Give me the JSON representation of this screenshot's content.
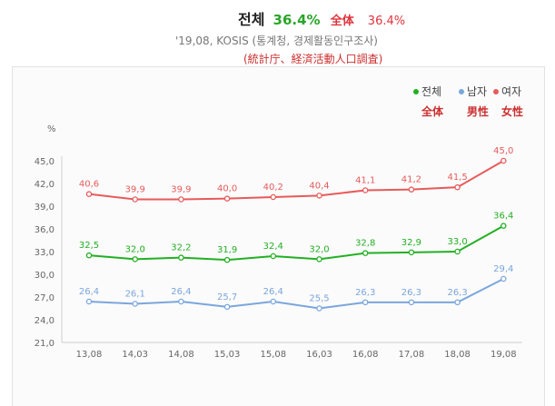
{
  "header": {
    "title": "전체",
    "value": "36.4%",
    "title_hanja": "全体",
    "value2": "36.4%",
    "source": "'19,08, KOSIS (통계청, 경제활동인구조사)",
    "source_hanja": "(統計庁、経済活動人口調査)"
  },
  "chart_data": {
    "type": "line",
    "ylabel": "%",
    "categories": [
      "13,08",
      "14,03",
      "14,08",
      "15,03",
      "15,08",
      "16,03",
      "16,08",
      "17,08",
      "18,08",
      "19,08"
    ],
    "ylim": [
      21.0,
      45.0
    ],
    "yticks": [
      "21,0",
      "24,0",
      "27,0",
      "30,0",
      "33,0",
      "36,0",
      "39,0",
      "42,0",
      "45,0"
    ],
    "series": [
      {
        "name": "전체",
        "name_hanja": "全体",
        "color": "#22b022",
        "values": [
          32.5,
          32.0,
          32.2,
          31.9,
          32.4,
          32.0,
          32.8,
          32.9,
          33.0,
          36.4
        ],
        "labels": [
          "32,5",
          "32,0",
          "32,2",
          "31,9",
          "32,4",
          "32,0",
          "32,8",
          "32,9",
          "33,0",
          "36,4"
        ]
      },
      {
        "name": "남자",
        "name_hanja": "男性",
        "color": "#7aa6dc",
        "values": [
          26.4,
          26.1,
          26.4,
          25.7,
          26.4,
          25.5,
          26.3,
          26.3,
          26.3,
          29.4
        ],
        "labels": [
          "26,4",
          "26,1",
          "26,4",
          "25,7",
          "26,4",
          "25,5",
          "26,3",
          "26,3",
          "26,3",
          "29,4"
        ]
      },
      {
        "name": "여자",
        "name_hanja": "女性",
        "color": "#e85a5a",
        "values": [
          40.6,
          39.9,
          39.9,
          40.0,
          40.2,
          40.4,
          41.1,
          41.2,
          41.5,
          45.0
        ],
        "labels": [
          "40,6",
          "39,9",
          "39,9",
          "40,0",
          "40,2",
          "40,4",
          "41,1",
          "41,2",
          "41,5",
          "45,0"
        ]
      }
    ],
    "grid": false,
    "legend_position": "top-right"
  }
}
